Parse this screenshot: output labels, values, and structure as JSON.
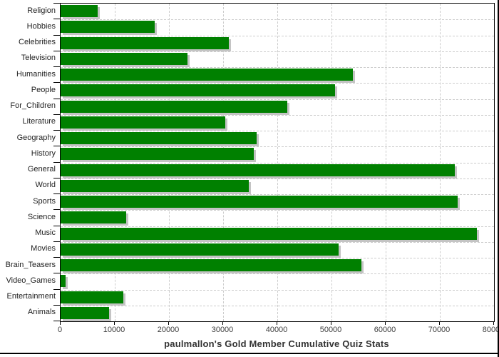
{
  "chart_data": {
    "type": "bar",
    "orientation": "horizontal",
    "title": "paulmallon's Gold Member Cumulative Quiz Stats",
    "xlabel": "",
    "ylabel": "",
    "categories": [
      "Religion",
      "Hobbies",
      "Celebrities",
      "Television",
      "Humanities",
      "People",
      "For_Children",
      "Literature",
      "Geography",
      "History",
      "General",
      "World",
      "Sports",
      "Science",
      "Music",
      "Movies",
      "Brain_Teasers",
      "Video_Games",
      "Entertainment",
      "Animals"
    ],
    "values": [
      6900,
      17400,
      31000,
      23400,
      53900,
      50600,
      41800,
      30400,
      36200,
      35600,
      72800,
      34800,
      73300,
      12100,
      76900,
      51300,
      55500,
      900,
      11600,
      9000
    ],
    "xlim": [
      0,
      80000
    ],
    "x_ticks": [
      0,
      10000,
      20000,
      30000,
      40000,
      50000,
      60000,
      70000,
      80000
    ],
    "x_tick_labels": [
      "0",
      "10000",
      "20000",
      "30000",
      "40000",
      "50000",
      "60000",
      "70000",
      "80000"
    ],
    "grid": true,
    "legend": false,
    "colors": {
      "bar": "#008000",
      "bar_shadow": "#c4c4c4",
      "gridline": "#cccccc",
      "axis": "#000000",
      "category_label": "#222222",
      "tick_label": "#3d3d3d",
      "title": "#333333"
    }
  }
}
